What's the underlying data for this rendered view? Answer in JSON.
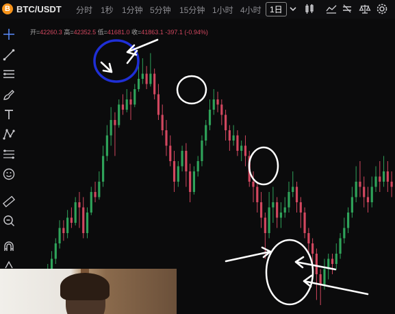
{
  "header": {
    "coin_icon": "bitcoin-icon",
    "coin_glyph": "B",
    "symbol": "BTC/USDT",
    "timeframes": [
      "分时",
      "1秒",
      "1分钟",
      "5分钟",
      "15分钟",
      "1小时",
      "4小时"
    ],
    "active_timeframe": "1日",
    "tools": [
      "chevron-down-icon",
      "candlestick-type-icon",
      "indicator-icon",
      "compare-icon",
      "settings-icon"
    ]
  },
  "ohlc": {
    "open_label": "开=",
    "open": "42260.3",
    "high_label": "高=",
    "high": "42352.5",
    "low_label": "低=",
    "low": "41681.0",
    "close_label": "收=",
    "close": "41863.1",
    "change": "-397.1 (-0.94%)"
  },
  "sidebar": {
    "tools": [
      "crosshair-icon",
      "trend-line-icon",
      "horizontal-lines-icon",
      "brush-icon",
      "text-icon",
      "pattern-icon",
      "fibonacci-icon",
      "emoji-icon",
      "ruler-icon",
      "zoom-icon",
      "magnet-icon",
      "lock-icon"
    ]
  },
  "colors": {
    "up": "#2fa35a",
    "down": "#d2475f",
    "annotation_blue": "#1f2fd6",
    "annotation_white": "#ffffff",
    "background": "#0b0b0c"
  },
  "chart_data": {
    "type": "candlestick",
    "note_annotations": [
      "blue circle at top",
      "white circles",
      "white arrows"
    ],
    "candles": [
      {
        "o": 0.05,
        "c": 0.09,
        "h": 0.11,
        "l": 0.03
      },
      {
        "o": 0.09,
        "c": 0.1,
        "h": 0.13,
        "l": 0.07
      },
      {
        "o": 0.1,
        "c": 0.07,
        "h": 0.12,
        "l": 0.05
      },
      {
        "o": 0.07,
        "c": 0.11,
        "h": 0.13,
        "l": 0.06
      },
      {
        "o": 0.11,
        "c": 0.1,
        "h": 0.14,
        "l": 0.08
      },
      {
        "o": 0.1,
        "c": 0.14,
        "h": 0.16,
        "l": 0.09
      },
      {
        "o": 0.14,
        "c": 0.18,
        "h": 0.21,
        "l": 0.12
      },
      {
        "o": 0.18,
        "c": 0.24,
        "h": 0.26,
        "l": 0.16
      },
      {
        "o": 0.24,
        "c": 0.3,
        "h": 0.33,
        "l": 0.22
      },
      {
        "o": 0.3,
        "c": 0.28,
        "h": 0.33,
        "l": 0.25
      },
      {
        "o": 0.28,
        "c": 0.34,
        "h": 0.37,
        "l": 0.26
      },
      {
        "o": 0.34,
        "c": 0.32,
        "h": 0.38,
        "l": 0.3
      },
      {
        "o": 0.32,
        "c": 0.4,
        "h": 0.42,
        "l": 0.31
      },
      {
        "o": 0.4,
        "c": 0.38,
        "h": 0.44,
        "l": 0.3
      },
      {
        "o": 0.38,
        "c": 0.28,
        "h": 0.42,
        "l": 0.26
      },
      {
        "o": 0.28,
        "c": 0.36,
        "h": 0.38,
        "l": 0.26
      },
      {
        "o": 0.36,
        "c": 0.44,
        "h": 0.46,
        "l": 0.35
      },
      {
        "o": 0.44,
        "c": 0.42,
        "h": 0.48,
        "l": 0.4
      },
      {
        "o": 0.42,
        "c": 0.48,
        "h": 0.52,
        "l": 0.41
      },
      {
        "o": 0.48,
        "c": 0.58,
        "h": 0.62,
        "l": 0.46
      },
      {
        "o": 0.58,
        "c": 0.66,
        "h": 0.7,
        "l": 0.56
      },
      {
        "o": 0.66,
        "c": 0.72,
        "h": 0.77,
        "l": 0.62
      },
      {
        "o": 0.72,
        "c": 0.7,
        "h": 0.75,
        "l": 0.58
      },
      {
        "o": 0.7,
        "c": 0.78,
        "h": 0.8,
        "l": 0.69
      },
      {
        "o": 0.78,
        "c": 0.76,
        "h": 0.82,
        "l": 0.74
      },
      {
        "o": 0.76,
        "c": 0.8,
        "h": 0.84,
        "l": 0.75
      },
      {
        "o": 0.8,
        "c": 0.78,
        "h": 0.83,
        "l": 0.72
      },
      {
        "o": 0.78,
        "c": 0.84,
        "h": 0.86,
        "l": 0.77
      },
      {
        "o": 0.84,
        "c": 0.88,
        "h": 0.94,
        "l": 0.83
      },
      {
        "o": 0.88,
        "c": 0.9,
        "h": 0.96,
        "l": 0.86
      },
      {
        "o": 0.9,
        "c": 0.86,
        "h": 0.93,
        "l": 0.84
      },
      {
        "o": 0.86,
        "c": 0.9,
        "h": 0.98,
        "l": 0.85
      },
      {
        "o": 0.9,
        "c": 0.82,
        "h": 0.92,
        "l": 0.8
      },
      {
        "o": 0.82,
        "c": 0.74,
        "h": 0.86,
        "l": 0.72
      },
      {
        "o": 0.74,
        "c": 0.68,
        "h": 0.78,
        "l": 0.66
      },
      {
        "o": 0.68,
        "c": 0.62,
        "h": 0.72,
        "l": 0.58
      },
      {
        "o": 0.62,
        "c": 0.56,
        "h": 0.66,
        "l": 0.54
      },
      {
        "o": 0.56,
        "c": 0.48,
        "h": 0.6,
        "l": 0.44
      },
      {
        "o": 0.48,
        "c": 0.54,
        "h": 0.56,
        "l": 0.46
      },
      {
        "o": 0.54,
        "c": 0.6,
        "h": 0.62,
        "l": 0.52
      },
      {
        "o": 0.6,
        "c": 0.52,
        "h": 0.63,
        "l": 0.46
      },
      {
        "o": 0.52,
        "c": 0.44,
        "h": 0.55,
        "l": 0.4
      },
      {
        "o": 0.44,
        "c": 0.52,
        "h": 0.54,
        "l": 0.43
      },
      {
        "o": 0.52,
        "c": 0.56,
        "h": 0.58,
        "l": 0.5
      },
      {
        "o": 0.56,
        "c": 0.64,
        "h": 0.66,
        "l": 0.54
      },
      {
        "o": 0.64,
        "c": 0.7,
        "h": 0.72,
        "l": 0.62
      },
      {
        "o": 0.7,
        "c": 0.76,
        "h": 0.8,
        "l": 0.68
      },
      {
        "o": 0.76,
        "c": 0.8,
        "h": 0.84,
        "l": 0.74
      },
      {
        "o": 0.8,
        "c": 0.78,
        "h": 0.83,
        "l": 0.75
      },
      {
        "o": 0.78,
        "c": 0.74,
        "h": 0.8,
        "l": 0.7
      },
      {
        "o": 0.74,
        "c": 0.68,
        "h": 0.76,
        "l": 0.64
      },
      {
        "o": 0.68,
        "c": 0.64,
        "h": 0.7,
        "l": 0.6
      },
      {
        "o": 0.64,
        "c": 0.66,
        "h": 0.7,
        "l": 0.62
      },
      {
        "o": 0.66,
        "c": 0.6,
        "h": 0.68,
        "l": 0.58
      },
      {
        "o": 0.6,
        "c": 0.62,
        "h": 0.64,
        "l": 0.56
      },
      {
        "o": 0.62,
        "c": 0.58,
        "h": 0.66,
        "l": 0.54
      },
      {
        "o": 0.58,
        "c": 0.48,
        "h": 0.6,
        "l": 0.46
      },
      {
        "o": 0.48,
        "c": 0.46,
        "h": 0.52,
        "l": 0.4
      },
      {
        "o": 0.46,
        "c": 0.4,
        "h": 0.48,
        "l": 0.36
      },
      {
        "o": 0.4,
        "c": 0.34,
        "h": 0.44,
        "l": 0.3
      },
      {
        "o": 0.34,
        "c": 0.28,
        "h": 0.36,
        "l": 0.18
      },
      {
        "o": 0.28,
        "c": 0.38,
        "h": 0.44,
        "l": 0.26
      },
      {
        "o": 0.38,
        "c": 0.4,
        "h": 0.46,
        "l": 0.32
      },
      {
        "o": 0.4,
        "c": 0.34,
        "h": 0.42,
        "l": 0.3
      },
      {
        "o": 0.34,
        "c": 0.36,
        "h": 0.4,
        "l": 0.3
      },
      {
        "o": 0.36,
        "c": 0.38,
        "h": 0.42,
        "l": 0.34
      },
      {
        "o": 0.38,
        "c": 0.44,
        "h": 0.48,
        "l": 0.36
      },
      {
        "o": 0.44,
        "c": 0.46,
        "h": 0.52,
        "l": 0.42
      },
      {
        "o": 0.46,
        "c": 0.4,
        "h": 0.48,
        "l": 0.36
      },
      {
        "o": 0.4,
        "c": 0.36,
        "h": 0.42,
        "l": 0.3
      },
      {
        "o": 0.36,
        "c": 0.28,
        "h": 0.38,
        "l": 0.26
      },
      {
        "o": 0.28,
        "c": 0.24,
        "h": 0.3,
        "l": 0.2
      },
      {
        "o": 0.24,
        "c": 0.2,
        "h": 0.26,
        "l": 0.16
      },
      {
        "o": 0.2,
        "c": 0.12,
        "h": 0.22,
        "l": 0.02
      },
      {
        "o": 0.12,
        "c": 0.08,
        "h": 0.14,
        "l": 0.0
      },
      {
        "o": 0.08,
        "c": 0.14,
        "h": 0.18,
        "l": 0.06
      },
      {
        "o": 0.14,
        "c": 0.18,
        "h": 0.2,
        "l": 0.1
      },
      {
        "o": 0.18,
        "c": 0.16,
        "h": 0.2,
        "l": 0.12
      },
      {
        "o": 0.16,
        "c": 0.2,
        "h": 0.24,
        "l": 0.14
      },
      {
        "o": 0.2,
        "c": 0.26,
        "h": 0.28,
        "l": 0.18
      },
      {
        "o": 0.26,
        "c": 0.3,
        "h": 0.34,
        "l": 0.24
      },
      {
        "o": 0.3,
        "c": 0.36,
        "h": 0.38,
        "l": 0.28
      },
      {
        "o": 0.36,
        "c": 0.42,
        "h": 0.46,
        "l": 0.34
      },
      {
        "o": 0.42,
        "c": 0.48,
        "h": 0.54,
        "l": 0.4
      },
      {
        "o": 0.48,
        "c": 0.46,
        "h": 0.56,
        "l": 0.42
      },
      {
        "o": 0.46,
        "c": 0.42,
        "h": 0.5,
        "l": 0.38
      },
      {
        "o": 0.42,
        "c": 0.4,
        "h": 0.46,
        "l": 0.36
      },
      {
        "o": 0.4,
        "c": 0.46,
        "h": 0.5,
        "l": 0.38
      },
      {
        "o": 0.46,
        "c": 0.5,
        "h": 0.54,
        "l": 0.44
      },
      {
        "o": 0.5,
        "c": 0.48,
        "h": 0.56,
        "l": 0.44
      },
      {
        "o": 0.48,
        "c": 0.52,
        "h": 0.58,
        "l": 0.46
      },
      {
        "o": 0.52,
        "c": 0.48,
        "h": 0.56,
        "l": 0.44
      },
      {
        "o": 0.48,
        "c": 0.46,
        "h": 0.52,
        "l": 0.42
      }
    ]
  }
}
